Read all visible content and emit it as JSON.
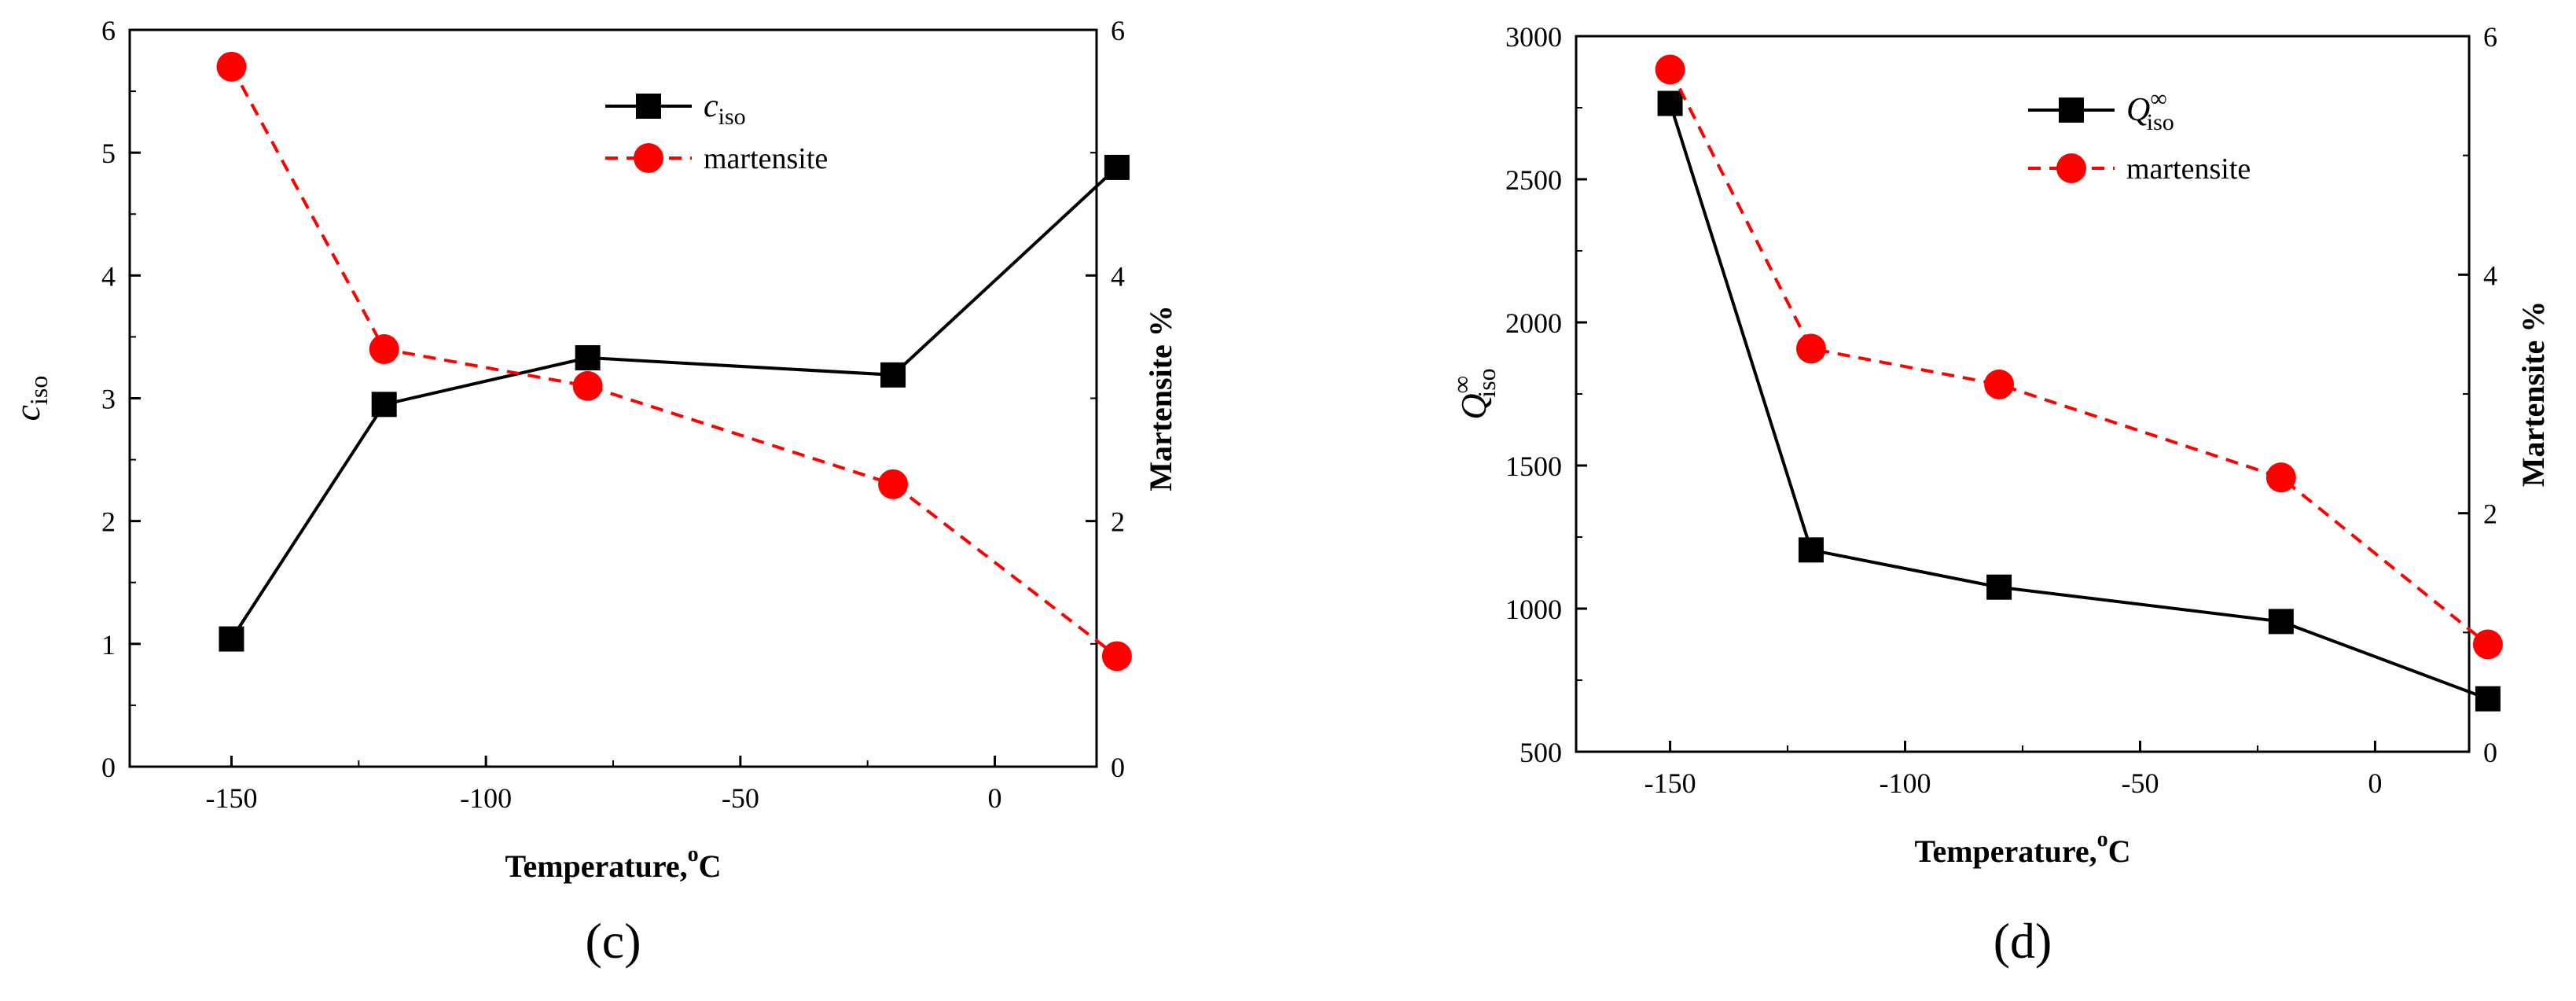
{
  "chart_data": [
    {
      "type": "line",
      "panel_label": "(c)",
      "xlabel": "Temperature,",
      "xlabel_sup": "o",
      "xlabel_unit": "C",
      "ylabel": "c",
      "ylabel_sub": "iso",
      "y2label": "Martensite %",
      "xlim": [
        -170,
        20
      ],
      "ylim": [
        0,
        6
      ],
      "y2lim": [
        0,
        6
      ],
      "xticks": [
        -150,
        -100,
        -50,
        0
      ],
      "yticks": [
        0,
        1,
        2,
        3,
        4,
        5,
        6
      ],
      "y2ticks": [
        0,
        2,
        4,
        6
      ],
      "series": [
        {
          "name": "c",
          "name_sub": "iso",
          "axis": "left",
          "color": "#000000",
          "marker": "square",
          "dash": "solid",
          "x": [
            -150,
            -120,
            -80,
            -20,
            24
          ],
          "values": [
            1.04,
            2.95,
            3.33,
            3.19,
            4.88
          ]
        },
        {
          "name": "martensite",
          "axis": "right",
          "color": "#ff0000",
          "marker": "circle",
          "dash": "dashed",
          "x": [
            -150,
            -120,
            -80,
            -20,
            24
          ],
          "values": [
            5.7,
            3.4,
            3.1,
            2.3,
            0.9
          ]
        }
      ]
    },
    {
      "type": "line",
      "panel_label": "(d)",
      "xlabel": "Temperature,",
      "xlabel_sup": "o",
      "xlabel_unit": "C",
      "ylabel": "Q",
      "ylabel_sup": "∞",
      "ylabel_sub": "iso",
      "y2label": "Martensite %",
      "xlim": [
        -170,
        20
      ],
      "ylim": [
        500,
        3000
      ],
      "y2lim": [
        0,
        6
      ],
      "xticks": [
        -150,
        -100,
        -50,
        0
      ],
      "yticks": [
        500,
        1000,
        1500,
        2000,
        2500,
        3000
      ],
      "y2ticks": [
        0,
        2,
        4,
        6
      ],
      "series": [
        {
          "name": "Q",
          "name_sup": "∞",
          "name_sub": "iso",
          "axis": "left",
          "color": "#000000",
          "marker": "square",
          "dash": "solid",
          "x": [
            -150,
            -120,
            -80,
            -20,
            24
          ],
          "values": [
            2765,
            1205,
            1075,
            955,
            685
          ]
        },
        {
          "name": "martensite",
          "axis": "right",
          "color": "#ff0000",
          "marker": "circle",
          "dash": "dashed",
          "x": [
            -150,
            -120,
            -80,
            -20,
            24
          ],
          "values": [
            5.72,
            3.38,
            3.08,
            2.3,
            0.9
          ]
        }
      ]
    }
  ]
}
